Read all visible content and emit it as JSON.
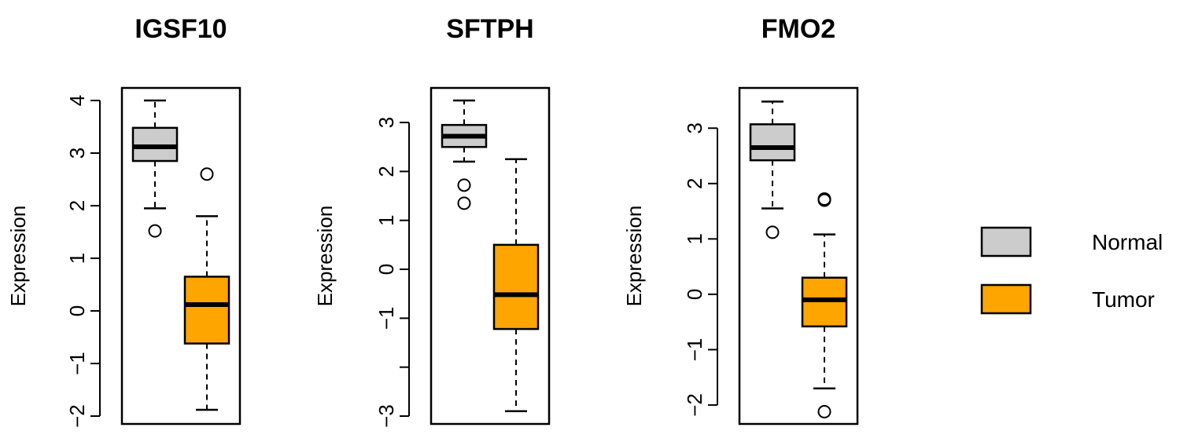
{
  "colors": {
    "normal": "#CCCCCC",
    "tumor": "#FFA500",
    "stroke": "#000000"
  },
  "legend": {
    "position": "right",
    "items": [
      {
        "label": "Normal",
        "color": "#CCCCCC"
      },
      {
        "label": "Tumor",
        "color": "#FFA500"
      }
    ]
  },
  "chart_data": [
    {
      "type": "box",
      "title": "IGSF10",
      "ylabel": "Expression",
      "ylim": [
        -2.0,
        4.0
      ],
      "yticks": [
        4,
        3,
        2,
        1,
        0,
        -1,
        -2
      ],
      "ytick_labels": [
        "4",
        "3",
        "2",
        "1",
        "0",
        "−1",
        "−2"
      ],
      "groups": [
        {
          "name": "Normal",
          "color": "#CCCCCC",
          "whisker_low": 1.95,
          "q1": 2.85,
          "median": 3.12,
          "q3": 3.48,
          "whisker_high": 4.0,
          "outliers": [
            1.52
          ]
        },
        {
          "name": "Tumor",
          "color": "#FFA500",
          "whisker_low": -1.88,
          "q1": -0.62,
          "median": 0.12,
          "q3": 0.65,
          "whisker_high": 1.8,
          "outliers": [
            2.6
          ]
        }
      ]
    },
    {
      "type": "box",
      "title": "SFTPH",
      "ylabel": "Expression",
      "ylim": [
        -3.0,
        3.45
      ],
      "yticks": [
        3,
        2,
        1,
        0,
        -1,
        -2,
        -3
      ],
      "ytick_labels": [
        "3",
        "2",
        "1",
        "0",
        "−1",
        "",
        "−3"
      ],
      "groups": [
        {
          "name": "Normal",
          "color": "#CCCCCC",
          "whisker_low": 2.2,
          "q1": 2.5,
          "median": 2.72,
          "q3": 2.95,
          "whisker_high": 3.45,
          "outliers": [
            1.72,
            1.35
          ]
        },
        {
          "name": "Tumor",
          "color": "#FFA500",
          "whisker_low": -2.9,
          "q1": -1.22,
          "median": -0.52,
          "q3": 0.5,
          "whisker_high": 2.25,
          "outliers": []
        }
      ]
    },
    {
      "type": "box",
      "title": "FMO2",
      "ylabel": "Expression",
      "ylim": [
        -2.2,
        3.5
      ],
      "yticks": [
        3,
        2,
        1,
        0,
        -1,
        -2
      ],
      "ytick_labels": [
        "3",
        "2",
        "1",
        "0",
        "−1",
        "−2"
      ],
      "groups": [
        {
          "name": "Normal",
          "color": "#CCCCCC",
          "whisker_low": 1.55,
          "q1": 2.42,
          "median": 2.65,
          "q3": 3.07,
          "whisker_high": 3.48,
          "outliers": [
            1.12
          ]
        },
        {
          "name": "Tumor",
          "color": "#FFA500",
          "whisker_low": -1.7,
          "q1": -0.58,
          "median": -0.1,
          "q3": 0.3,
          "whisker_high": 1.08,
          "outliers": [
            1.72,
            1.7,
            -2.12
          ]
        }
      ]
    }
  ]
}
